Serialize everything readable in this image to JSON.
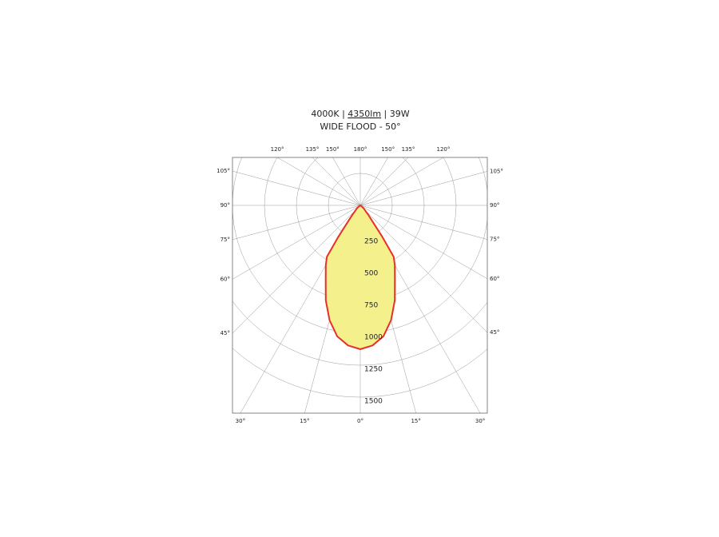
{
  "chart_data": {
    "type": "polar",
    "title_parts": [
      "4000K | ",
      "4350lm",
      " | 39W"
    ],
    "subtitle": "WIDE FLOOD - 50°",
    "angles": [
      -90,
      -50,
      -40,
      -35,
      -33,
      -30,
      -25,
      -20,
      -15,
      -10,
      -5,
      0,
      5,
      10,
      15,
      20,
      25,
      30,
      33,
      35,
      40,
      50,
      90
    ],
    "values": [
      0,
      30,
      100,
      300,
      480,
      540,
      640,
      790,
      930,
      1040,
      1100,
      1125,
      1100,
      1040,
      930,
      790,
      640,
      540,
      480,
      300,
      100,
      30,
      0
    ],
    "color": "#e8302a",
    "fill": "#f4f08c",
    "rlim": [
      0,
      1500
    ],
    "rticks": [
      250,
      500,
      750,
      1000,
      1250,
      1500
    ],
    "angle_ticks": [
      {
        "value": -120,
        "label": "120°"
      },
      {
        "value": -135,
        "label": "135°"
      },
      {
        "value": -150,
        "label": "150°"
      },
      {
        "value": 180,
        "label": "180°"
      },
      {
        "value": 150,
        "label": "150°"
      },
      {
        "value": 135,
        "label": "135°"
      },
      {
        "value": 120,
        "label": "120°"
      },
      {
        "value": -105,
        "label": "105°"
      },
      {
        "value": -90,
        "label": "90°"
      },
      {
        "value": -75,
        "label": "75°"
      },
      {
        "value": -60,
        "label": "60°"
      },
      {
        "value": -45,
        "label": "45°"
      },
      {
        "value": 105,
        "label": "105°"
      },
      {
        "value": 90,
        "label": "90°"
      },
      {
        "value": 75,
        "label": "75°"
      },
      {
        "value": 60,
        "label": "60°"
      },
      {
        "value": 45,
        "label": "45°"
      },
      {
        "value": -30,
        "label": "30°"
      },
      {
        "value": -15,
        "label": "15°"
      },
      {
        "value": 0,
        "label": "0°"
      },
      {
        "value": 15,
        "label": "15°"
      },
      {
        "value": 30,
        "label": "30°"
      }
    ],
    "grid": true
  }
}
